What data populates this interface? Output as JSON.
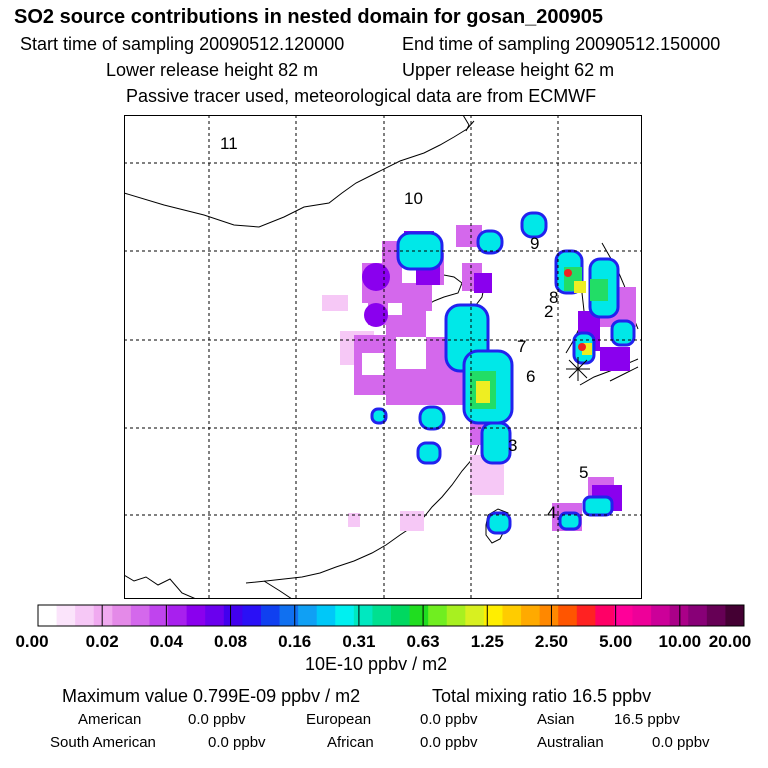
{
  "header": {
    "title": "SO2 source contributions in nested domain for gosan_200905",
    "start_label": "Start time of sampling 20090512.120000",
    "end_label": "End time of sampling 20090512.150000",
    "lower_label": "Lower release height   82 m",
    "upper_label": "Upper release height   62 m",
    "note": "Passive tracer used, meteorological data are from ECMWF"
  },
  "map": {
    "region_labels": [
      "11",
      "10",
      "9",
      "8",
      "2",
      "7",
      "6",
      "3",
      "5",
      "4"
    ],
    "receptor_marker": "asterisk",
    "blob_colors": {
      "light": "#f2b8f2",
      "mid": "#cc66ee",
      "purple": "#8800dd",
      "blue": "#2222ee",
      "cyan": "#00e8e8",
      "green": "#22dd66",
      "yellow": "#eeee22",
      "red": "#ee2222"
    }
  },
  "colorbar": {
    "tick_labels": [
      "0.00",
      "0.02",
      "0.04",
      "0.08",
      "0.16",
      "0.31",
      "0.63",
      "1.25",
      "2.50",
      "5.00",
      "10.00",
      "20.00"
    ],
    "colors": [
      "#ffffff",
      "#fbe4fb",
      "#f6c8f6",
      "#f0aaf0",
      "#e48ae8",
      "#d468ec",
      "#c044ee",
      "#a820ee",
      "#8a00ee",
      "#6a00ee",
      "#4200ee",
      "#2a10f6",
      "#1040f0",
      "#1070f0",
      "#10a0f4",
      "#00c8f8",
      "#00f0f0",
      "#00e8c0",
      "#00e090",
      "#00d860",
      "#20dd20",
      "#70ee20",
      "#a8f020",
      "#d8f020",
      "#ffee00",
      "#ffcc00",
      "#ffaa00",
      "#ff8800",
      "#ff5500",
      "#ff2222",
      "#ff0066",
      "#ff0099",
      "#ee0099",
      "#cc0099",
      "#aa0088",
      "#880077",
      "#660055",
      "#440033"
    ],
    "unit": "10E-10 ppbv / m2"
  },
  "stats": {
    "max_value": "Maximum value  0.799E-09 ppbv / m2",
    "total_mixing": "Total mixing ratio       16.5 ppbv",
    "american_label": "American",
    "american_value": "0.0 ppbv",
    "european_label": "European",
    "european_value": "0.0 ppbv",
    "asian_label": "Asian",
    "asian_value": "16.5 ppbv",
    "south_american_label": "South American",
    "south_american_value": "0.0 ppbv",
    "african_label": "African",
    "african_value": "0.0 ppbv",
    "australian_label": "Australian",
    "australian_value": "0.0 ppbv"
  }
}
